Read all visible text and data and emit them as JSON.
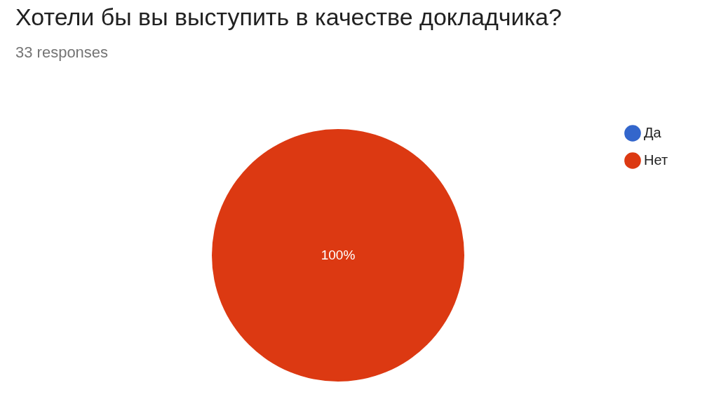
{
  "chart_data": {
    "type": "pie",
    "title": "Хотели бы вы выступить в качестве докладчика?",
    "subtitle": "33 responses",
    "categories": [
      "Да",
      "Нет"
    ],
    "values": [
      0,
      100
    ],
    "colors": [
      "#3366cc",
      "#dc3912"
    ],
    "value_labels": [
      null,
      "100%"
    ],
    "legend": "top right"
  }
}
